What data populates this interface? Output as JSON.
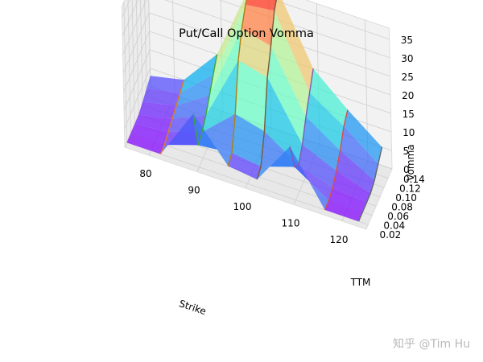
{
  "chart_data": {
    "type": "surface3d",
    "title": "Put/Call Option Vomma",
    "xlabel": "Strike",
    "ylabel": "TTM",
    "zlabel": "Vomma",
    "x_ticks": [
      "80",
      "90",
      "100",
      "110",
      "120"
    ],
    "y_ticks": [
      "0.02",
      "0.04",
      "0.06",
      "0.08",
      "0.10",
      "0.12",
      "0.14"
    ],
    "z_ticks": [
      "0",
      "5",
      "10",
      "15",
      "20",
      "25",
      "30",
      "35"
    ],
    "xlim": [
      75,
      125
    ],
    "ylim": [
      0.01,
      0.14
    ],
    "zlim": [
      0,
      38
    ],
    "grid": true,
    "colormap": "rainbow",
    "strikes": [
      75,
      82,
      89,
      96,
      102,
      109,
      116,
      123
    ],
    "ttm": [
      0.02,
      0.04,
      0.06,
      0.08,
      0.1,
      0.12,
      0.14
    ],
    "vomma": [
      [
        0,
        0,
        14,
        3,
        2,
        14,
        0,
        0
      ],
      [
        0,
        0,
        3,
        4,
        3,
        6,
        0,
        0
      ],
      [
        0,
        1,
        4,
        12,
        10,
        4,
        1,
        0
      ],
      [
        0,
        2,
        6,
        24,
        22,
        7,
        3,
        0
      ],
      [
        1,
        3,
        9,
        30,
        28,
        12,
        6,
        1
      ],
      [
        2,
        4,
        12,
        34,
        35,
        16,
        10,
        3
      ],
      [
        3,
        5,
        15,
        36,
        38,
        20,
        12,
        5
      ]
    ],
    "line_colors": [
      "#e37a1f",
      "#39a83a",
      "#b07f12",
      "#7b5a3a",
      "#7e5bb4",
      "#d64e4a",
      "#5e6a6e"
    ]
  },
  "watermark": "知乎 @Tim Hu"
}
